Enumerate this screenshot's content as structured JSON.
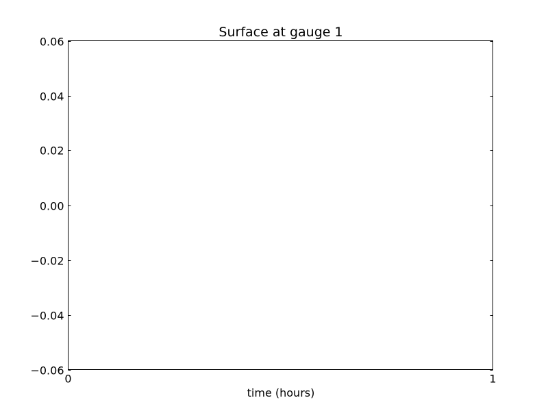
{
  "chart_data": {
    "type": "line",
    "title": "Surface at gauge 1",
    "xlabel": "time (hours)",
    "ylabel": "",
    "xlim": [
      0,
      1
    ],
    "ylim": [
      -0.06,
      0.06
    ],
    "x_ticks": [
      0,
      1
    ],
    "x_tick_labels": [
      "0",
      "1"
    ],
    "y_ticks": [
      0.06,
      0.04,
      0.02,
      0.0,
      -0.02,
      -0.04,
      -0.06
    ],
    "y_tick_labels": [
      "0.06",
      "0.04",
      "0.02",
      "0.00",
      "−0.02",
      "−0.04",
      "−0.06"
    ],
    "grid": false,
    "series": []
  }
}
